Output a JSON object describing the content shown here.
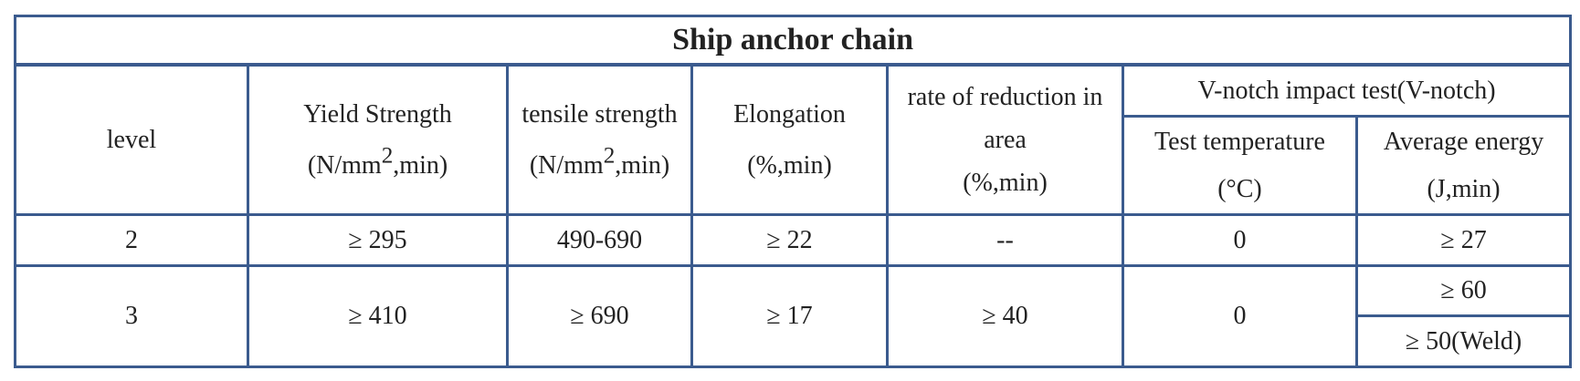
{
  "table": {
    "title": "Ship anchor chain",
    "headers": {
      "level": "level",
      "yield": {
        "line1": "Yield Strength",
        "unit_pre": "(N/mm",
        "unit_sup": "2",
        "unit_post": ",min)"
      },
      "tensile": {
        "line1": "tensile strength",
        "unit_pre": "(N/mm",
        "unit_sup": "2",
        "unit_post": ",min)"
      },
      "elongation": {
        "line1": "Elongation",
        "line2": "(%,min)"
      },
      "reduction": {
        "line1": "rate of reduction in",
        "line2": "area",
        "line3": "(%,min)"
      },
      "impact_group": "V-notch impact test(V-notch)",
      "test_temp": {
        "line1": "Test temperature",
        "line2": "(°C)"
      },
      "avg_energy": {
        "line1": "Average energy",
        "line2": "(J,min)"
      }
    },
    "rows": [
      {
        "level": "2",
        "yield": "≥ 295",
        "tensile": "490-690",
        "elongation": "≥ 22",
        "reduction": "--",
        "test_temp": "0",
        "energy": [
          "≥ 27"
        ]
      },
      {
        "level": "3",
        "yield": "≥ 410",
        "tensile": "≥ 690",
        "elongation": "≥ 17",
        "reduction": "≥ 40",
        "test_temp": "0",
        "energy": [
          "≥ 60",
          "≥ 50(Weld)"
        ]
      }
    ]
  }
}
